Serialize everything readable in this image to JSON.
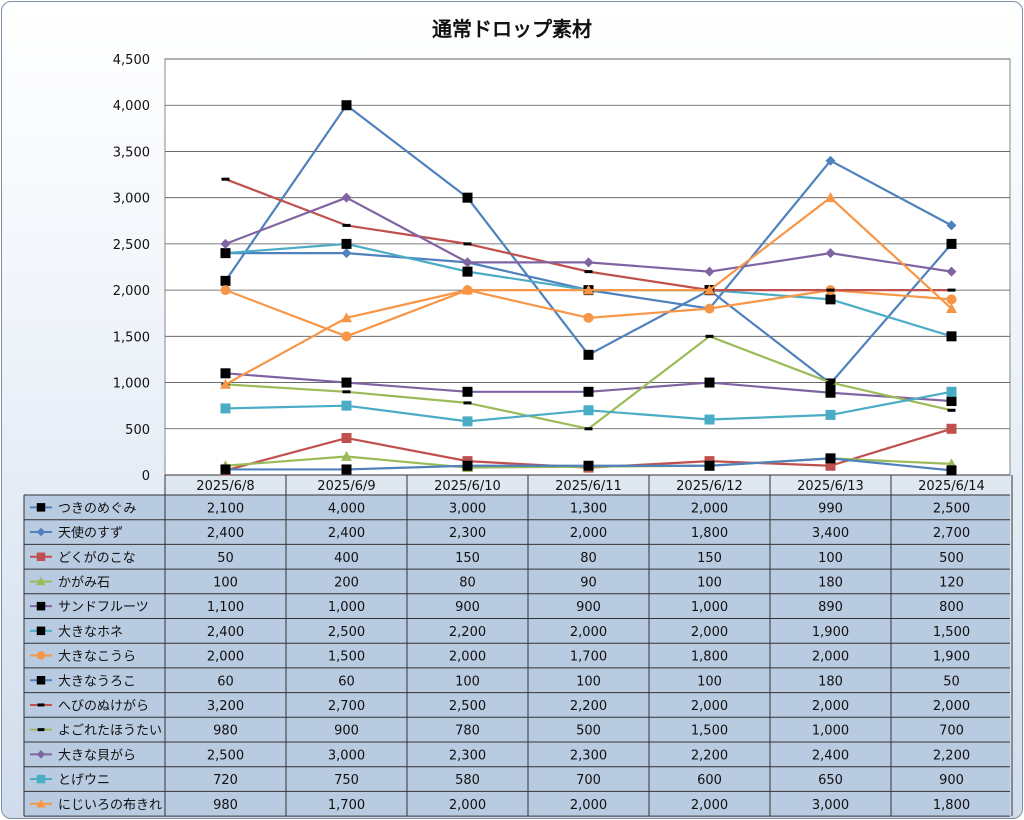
{
  "chart_data": {
    "type": "line",
    "title": "通常ドロップ素材",
    "ylim": [
      0,
      4500
    ],
    "yticks": [
      "0",
      "500",
      "1,000",
      "1,500",
      "2,000",
      "2,500",
      "3,000",
      "3,500",
      "4,000",
      "4,500"
    ],
    "categories": [
      "2025/6/8",
      "2025/6/9",
      "2025/6/10",
      "2025/6/11",
      "2025/6/12",
      "2025/6/13",
      "2025/6/14"
    ],
    "grid": true,
    "legend": "data-table-left",
    "series": [
      {
        "name": "つきのめぐみ",
        "color": "#4f81bd",
        "marker": "square-black",
        "values": [
          2100,
          4000,
          3000,
          1300,
          2000,
          990,
          2500
        ],
        "labels": [
          "2,100",
          "4,000",
          "3,000",
          "1,300",
          "2,000",
          "990",
          "2,500"
        ]
      },
      {
        "name": "天使のすず",
        "color": "#4f81bd",
        "marker": "diamond",
        "values": [
          2400,
          2400,
          2300,
          2000,
          1800,
          3400,
          2700
        ],
        "labels": [
          "2,400",
          "2,400",
          "2,300",
          "2,000",
          "1,800",
          "3,400",
          "2,700"
        ]
      },
      {
        "name": "どくがのこな",
        "color": "#c0504d",
        "marker": "square",
        "values": [
          50,
          400,
          150,
          80,
          150,
          100,
          500
        ],
        "labels": [
          "50",
          "400",
          "150",
          "80",
          "150",
          "100",
          "500"
        ]
      },
      {
        "name": "かがみ石",
        "color": "#9bbb59",
        "marker": "triangle",
        "values": [
          100,
          200,
          80,
          90,
          100,
          180,
          120
        ],
        "labels": [
          "100",
          "200",
          "80",
          "90",
          "100",
          "180",
          "120"
        ]
      },
      {
        "name": "サンドフルーツ",
        "color": "#8064a2",
        "marker": "square-black",
        "values": [
          1100,
          1000,
          900,
          900,
          1000,
          890,
          800
        ],
        "labels": [
          "1,100",
          "1,000",
          "900",
          "900",
          "1,000",
          "890",
          "800"
        ]
      },
      {
        "name": "大きなホネ",
        "color": "#4bacc6",
        "marker": "square-black",
        "values": [
          2400,
          2500,
          2200,
          2000,
          2000,
          1900,
          1500
        ],
        "labels": [
          "2,400",
          "2,500",
          "2,200",
          "2,000",
          "2,000",
          "1,900",
          "1,500"
        ]
      },
      {
        "name": "大きなこうら",
        "color": "#f79646",
        "marker": "circle",
        "values": [
          2000,
          1500,
          2000,
          1700,
          1800,
          2000,
          1900
        ],
        "labels": [
          "2,000",
          "1,500",
          "2,000",
          "1,700",
          "1,800",
          "2,000",
          "1,900"
        ]
      },
      {
        "name": "大きなうろこ",
        "color": "#4f81bd",
        "marker": "square-black",
        "values": [
          60,
          60,
          100,
          100,
          100,
          180,
          50
        ],
        "labels": [
          "60",
          "60",
          "100",
          "100",
          "100",
          "180",
          "50"
        ]
      },
      {
        "name": "へびのぬけがら",
        "color": "#c0504d",
        "marker": "dash",
        "values": [
          3200,
          2700,
          2500,
          2200,
          2000,
          2000,
          2000
        ],
        "labels": [
          "3,200",
          "2,700",
          "2,500",
          "2,200",
          "2,000",
          "2,000",
          "2,000"
        ]
      },
      {
        "name": "よごれたほうたい",
        "color": "#9bbb59",
        "marker": "dash",
        "values": [
          980,
          900,
          780,
          500,
          1500,
          1000,
          700
        ],
        "labels": [
          "980",
          "900",
          "780",
          "500",
          "1,500",
          "1,000",
          "700"
        ]
      },
      {
        "name": "大きな貝がら",
        "color": "#8064a2",
        "marker": "diamond",
        "values": [
          2500,
          3000,
          2300,
          2300,
          2200,
          2400,
          2200
        ],
        "labels": [
          "2,500",
          "3,000",
          "2,300",
          "2,300",
          "2,200",
          "2,400",
          "2,200"
        ]
      },
      {
        "name": "とげウニ",
        "color": "#4bacc6",
        "marker": "square",
        "values": [
          720,
          750,
          580,
          700,
          600,
          650,
          900
        ],
        "labels": [
          "720",
          "750",
          "580",
          "700",
          "600",
          "650",
          "900"
        ]
      },
      {
        "name": "にじいろの布きれ",
        "color": "#f79646",
        "marker": "triangle",
        "values": [
          980,
          1700,
          2000,
          2000,
          2000,
          3000,
          1800
        ],
        "labels": [
          "980",
          "1,700",
          "2,000",
          "2,000",
          "2,000",
          "3,000",
          "1,800"
        ]
      }
    ]
  }
}
